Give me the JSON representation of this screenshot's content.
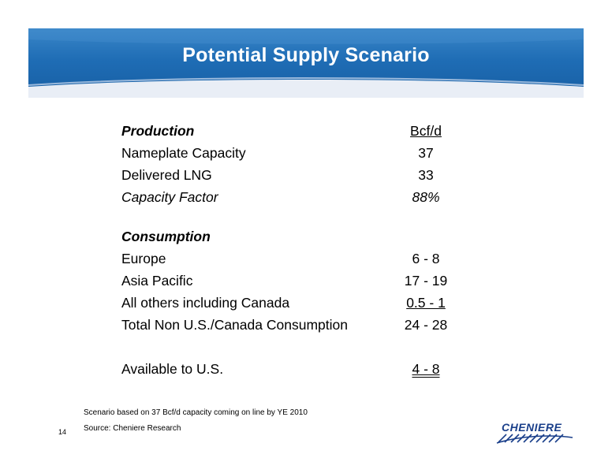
{
  "slide": {
    "title": "Potential Supply Scenario",
    "page_number": "14",
    "brand_color": "#1f6db5"
  },
  "production": {
    "heading": "Production",
    "unit_header": "Bcf/d",
    "rows": [
      {
        "label": "Nameplate Capacity",
        "value": "37"
      },
      {
        "label": "Delivered LNG",
        "value": "33"
      },
      {
        "label": "Capacity Factor",
        "value": "88%"
      }
    ]
  },
  "consumption": {
    "heading": "Consumption",
    "rows": [
      {
        "label": "Europe",
        "value": "6 - 8"
      },
      {
        "label": "Asia Pacific",
        "value": "17 - 19"
      },
      {
        "label": "All others including Canada",
        "value": "0.5 - 1"
      },
      {
        "label": "Total Non U.S./Canada Consumption",
        "value": "24 - 28"
      }
    ]
  },
  "available": {
    "label": "Available to U.S.",
    "value": "4 - 8"
  },
  "footnotes": {
    "scenario": "Scenario based on 37 Bcf/d capacity coming on line by YE 2010",
    "source": "Source: Cheniere Research"
  },
  "logo": {
    "text": "CHENIERE",
    "color": "#1a3f8a"
  }
}
